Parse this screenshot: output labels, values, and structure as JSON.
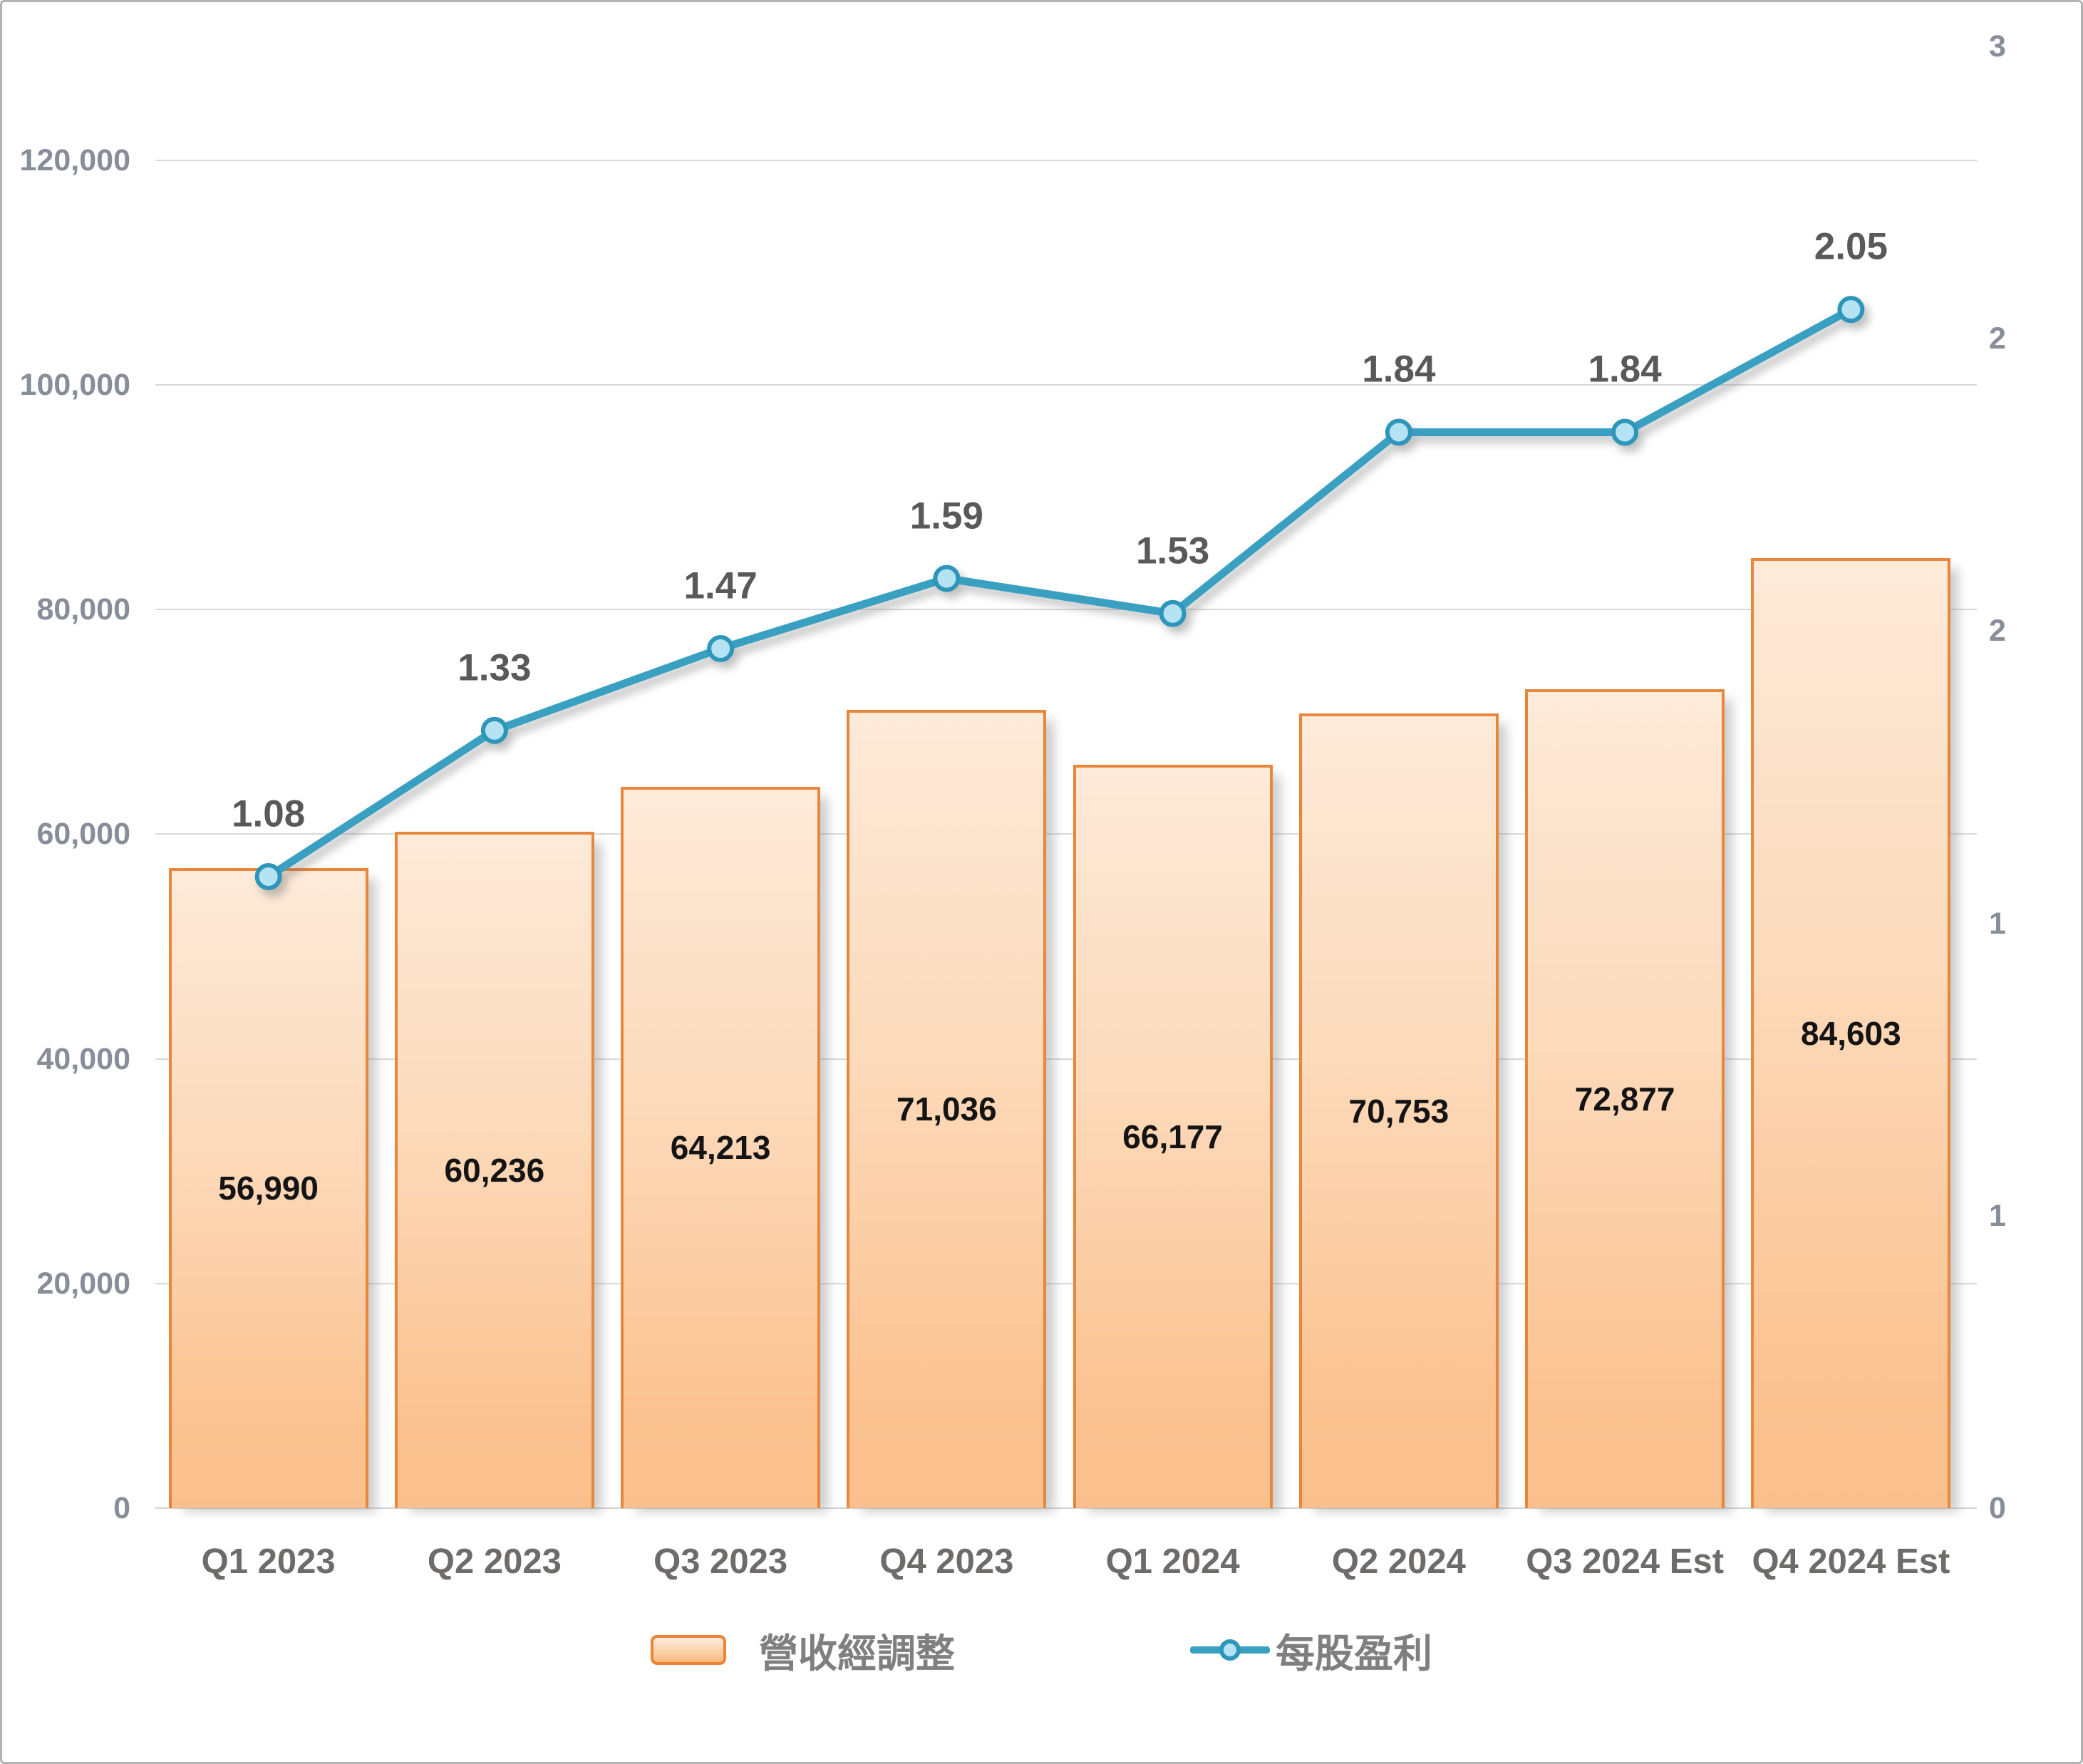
{
  "chart_data": {
    "type": "combo",
    "categories": [
      "Q1 2023",
      "Q2 2023",
      "Q3 2023",
      "Q4 2023",
      "Q1 2024",
      "Q2 2024",
      "Q3 2024 Est",
      "Q4 2024 Est"
    ],
    "series": [
      {
        "name": "營收經調整",
        "type": "bar",
        "axis": "left",
        "values": [
          56990,
          60236,
          64213,
          71036,
          66177,
          70753,
          72877,
          84603
        ],
        "labels": [
          "56,990",
          "60,236",
          "64,213",
          "71,036",
          "66,177",
          "70,753",
          "72,877",
          "84,603"
        ]
      },
      {
        "name": "每股盈利",
        "type": "line",
        "axis": "right",
        "values": [
          1.08,
          1.33,
          1.47,
          1.59,
          1.53,
          1.84,
          1.84,
          2.05
        ],
        "labels": [
          "1.08",
          "1.33",
          "1.47",
          "1.59",
          "1.53",
          "1.84",
          "1.84",
          "2.05"
        ]
      }
    ],
    "left_axis": {
      "min": 0,
      "plot_max": 130140,
      "ticks": [
        {
          "value": 0,
          "label": "0"
        },
        {
          "value": 20000,
          "label": "20,000"
        },
        {
          "value": 40000,
          "label": "40,000"
        },
        {
          "value": 60000,
          "label": "60,000"
        },
        {
          "value": 80000,
          "label": "80,000"
        },
        {
          "value": 100000,
          "label": "100,000"
        },
        {
          "value": 120000,
          "label": "120,000"
        }
      ]
    },
    "right_axis": {
      "min": 0,
      "plot_max": 2.5,
      "ticks": [
        {
          "value": 0,
          "label": "0"
        },
        {
          "value": 0.5,
          "label": "1"
        },
        {
          "value": 1,
          "label": "1"
        },
        {
          "value": 1.5,
          "label": "2"
        },
        {
          "value": 2,
          "label": "2"
        },
        {
          "value": 2.5,
          "label": "3"
        }
      ]
    },
    "legend": {
      "bar_label": "營收經調整",
      "line_label": "每股盈利"
    },
    "grid": true,
    "legend_position": "bottom",
    "colors": {
      "bar_fill_top": "#fdead9",
      "bar_fill_bottom": "#fabf8c",
      "bar_border": "#e8873b",
      "line": "#3aa0c2",
      "marker_fill": "#b5e3f3",
      "marker_border": "#2e96ba",
      "gridline": "#d9d9d9",
      "axis_text": "#878e99",
      "category_text": "#6f6b6b",
      "bar_value_text": "#141414",
      "eps_label_text": "#595959",
      "legend_text": "#7f7f7f"
    }
  }
}
